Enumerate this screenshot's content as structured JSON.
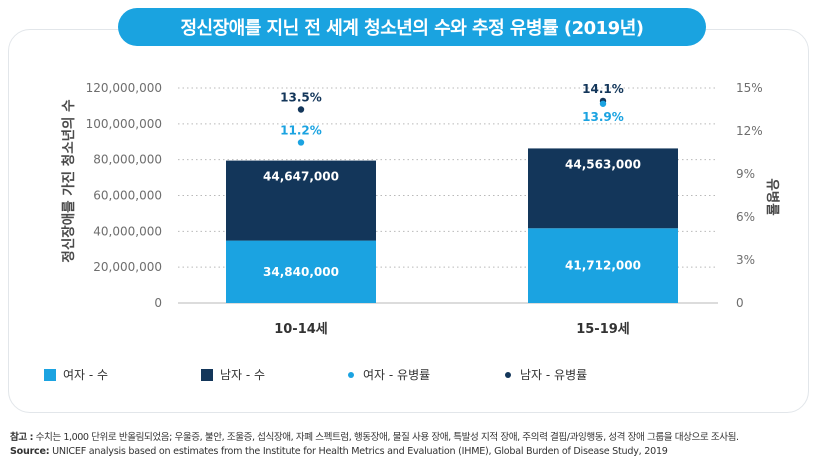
{
  "title": "정신장애를 지닌 전 세계 청소년의 수와 추정 유병률 (2019년)",
  "colors": {
    "female": "#1ba3e1",
    "male": "#13365a",
    "title_bg": "#1aa3e0",
    "grid": "#b9b9b9",
    "axis_text": "#6e6e6e"
  },
  "chart_data": {
    "type": "bar",
    "stacked": true,
    "categories": [
      "10-14세",
      "15-19세"
    ],
    "series": [
      {
        "name": "여자 - 수",
        "values": [
          34840000,
          41712000
        ],
        "labels": [
          "34,840,000",
          "41,712,000"
        ],
        "color": "#1ba3e1"
      },
      {
        "name": "남자 - 수",
        "values": [
          44647000,
          44563000
        ],
        "labels": [
          "44,647,000",
          "44,563,000"
        ],
        "color": "#13365a"
      }
    ],
    "prevalence": [
      {
        "name": "여자 - 유병률",
        "values": [
          11.2,
          13.9
        ],
        "labels": [
          "11.2%",
          "13.9%"
        ],
        "color": "#1ba3e1"
      },
      {
        "name": "남자 - 유병률",
        "values": [
          13.5,
          14.1
        ],
        "labels": [
          "13.5%",
          "14.1%"
        ],
        "color": "#13365a"
      }
    ],
    "ylabel": "정신장애를 가진 청소년의 수",
    "y2label": "유병률",
    "ylim": [
      0,
      120000000
    ],
    "y2lim": [
      0,
      15
    ],
    "yticks": [
      "0",
      "20,000,000",
      "40,000,000",
      "60,000,000",
      "80,000,000",
      "100,000,000",
      "120,000,000"
    ],
    "y2ticks": [
      "0",
      "3%",
      "6%",
      "9%",
      "12%",
      "15%"
    ],
    "grid": "dotted horizontal",
    "legend_position": "bottom"
  },
  "legend": [
    {
      "label": "여자 - 수",
      "shape": "square",
      "color": "#1ba3e1"
    },
    {
      "label": "남자 - 수",
      "shape": "square",
      "color": "#13365a"
    },
    {
      "label": "여자 - 유병률",
      "shape": "dot",
      "color": "#1ba3e1"
    },
    {
      "label": "남자 - 유병률",
      "shape": "dot",
      "color": "#13365a"
    }
  ],
  "footnote": {
    "label": "참고 :",
    "text": "수치는 1,000 단위로 반올림되었음; 우울증, 불안, 조울증, 섭식장애, 자폐 스펙트럼, 행동장애, 물질 사용 장애, 특발성 지적 장애, 주의력 결핍/과잉행동, 성격 장애 그룹을 대상으로 조사됨."
  },
  "source": {
    "label": "Source:",
    "text": "UNICEF analysis based on estimates from the Institute for Health Metrics and Evaluation (IHME), Global Burden of Disease Study, 2019"
  }
}
